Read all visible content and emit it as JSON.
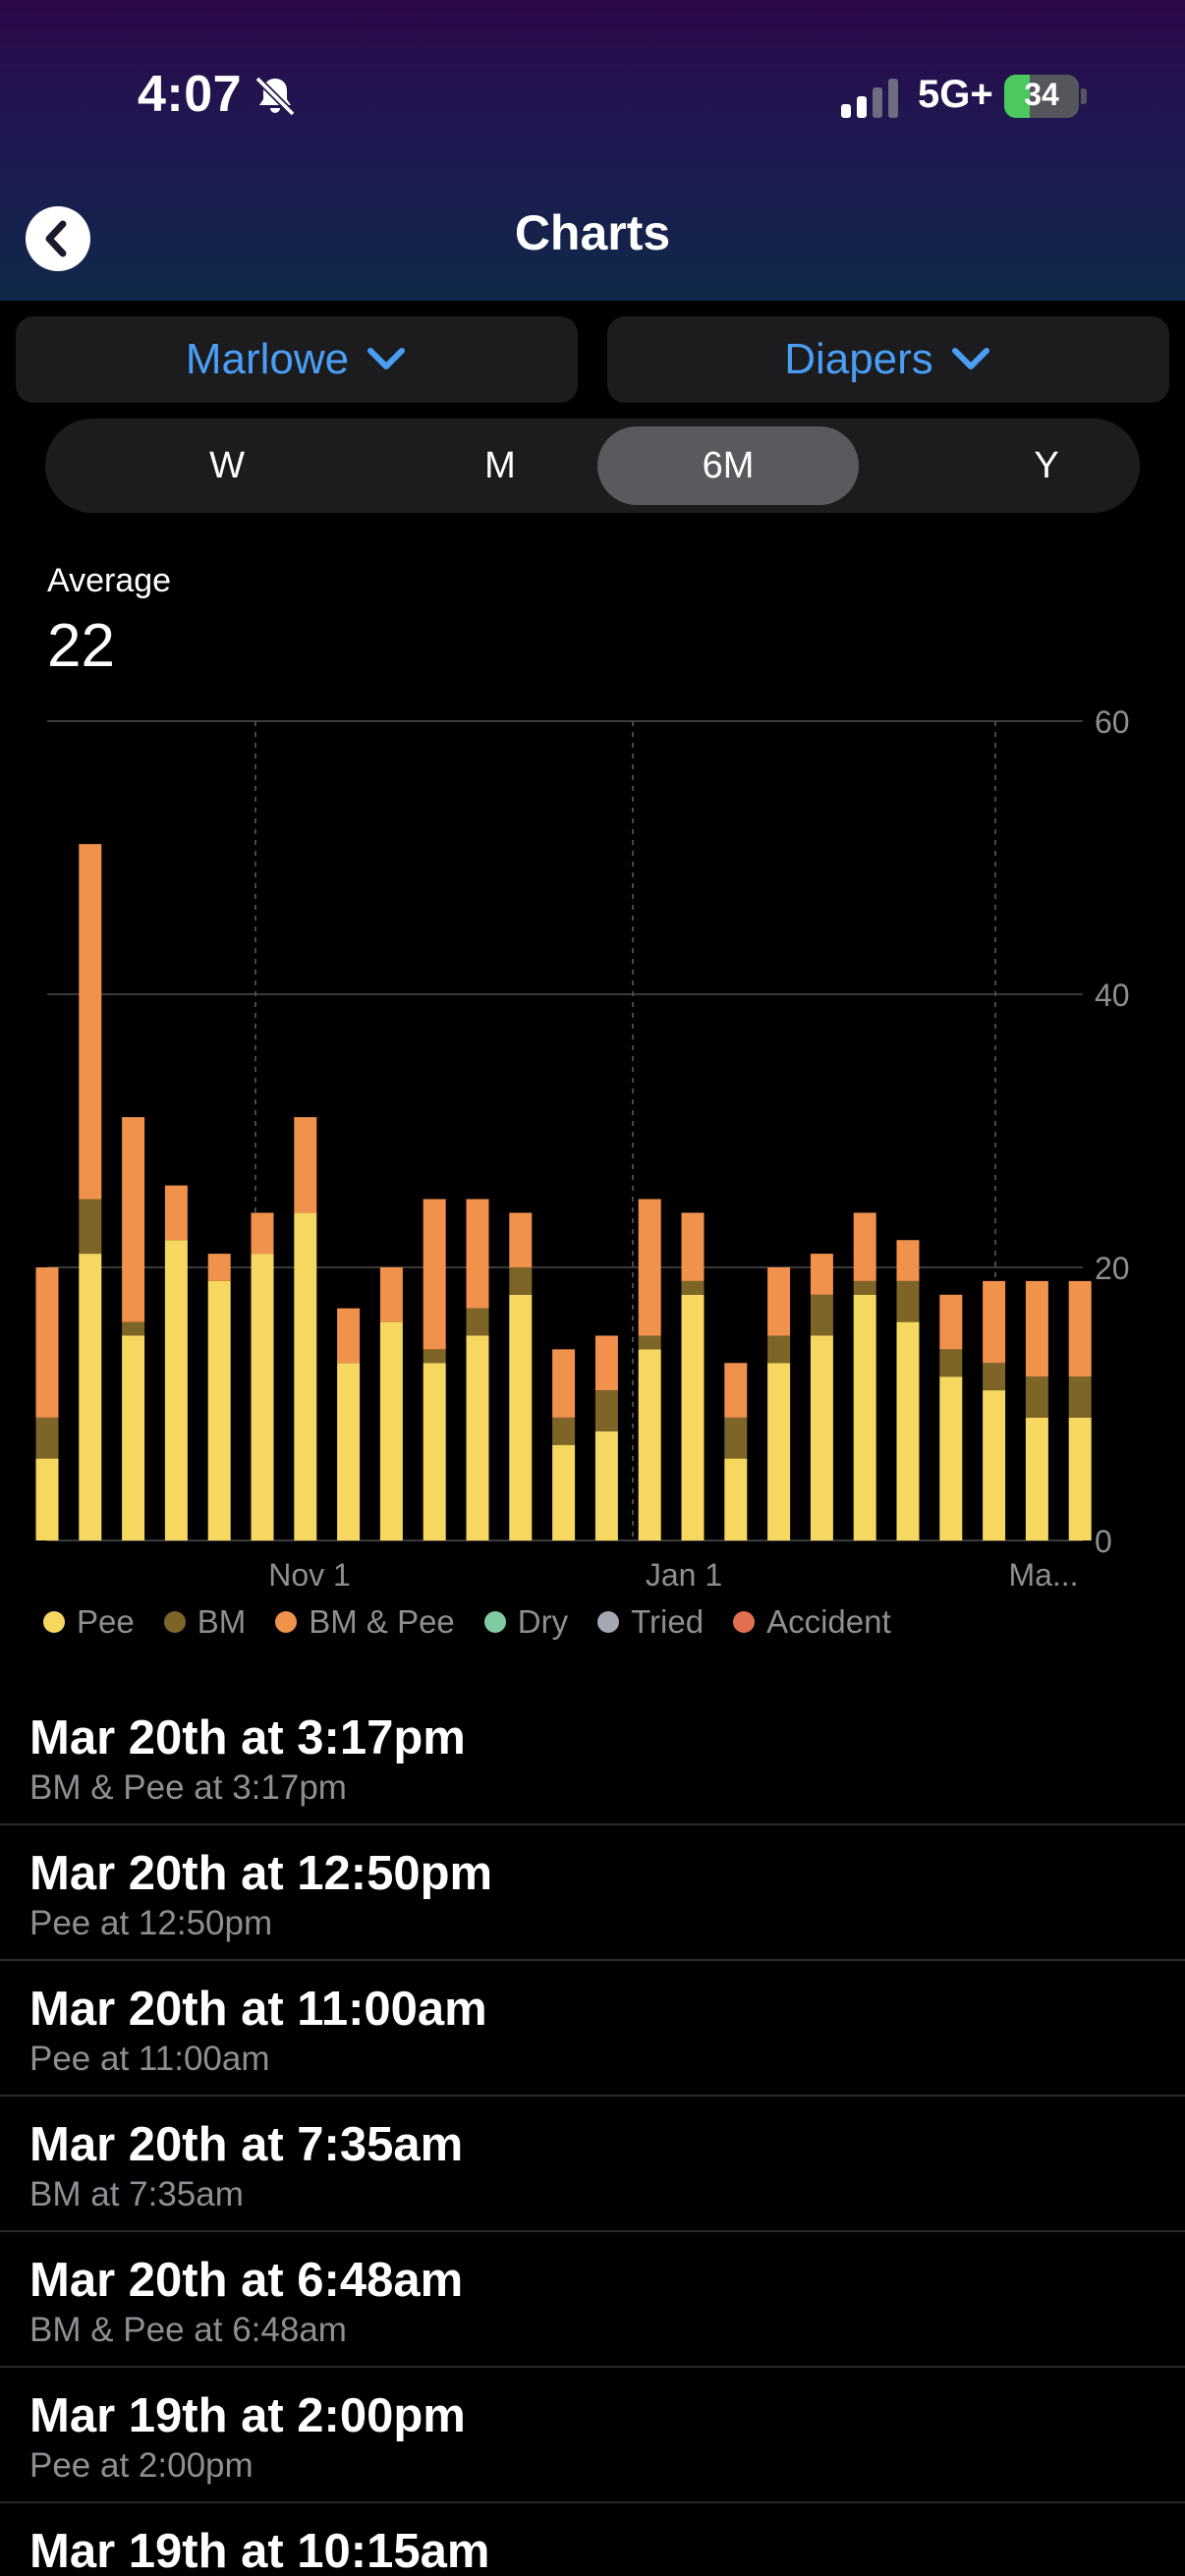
{
  "status": {
    "time": "4:07",
    "network": "5G+",
    "battery": "34",
    "battery_level": 0.34
  },
  "nav": {
    "title": "Charts"
  },
  "pickers": {
    "child": "Marlowe",
    "category": "Diapers"
  },
  "ranges": [
    "W",
    "M",
    "6M",
    "Y"
  ],
  "selected_range": "6M",
  "average": {
    "label": "Average",
    "value": "22"
  },
  "colors": {
    "pee": "#f6d860",
    "bm": "#7d6528",
    "bm_pee": "#f0914c",
    "dry": "#7ecba1",
    "tried": "#a5a8b3",
    "accident": "#e0704f",
    "accent": "#4a9ef5"
  },
  "chart_data": {
    "type": "bar",
    "stacked": true,
    "ylim": [
      0,
      60
    ],
    "y_ticks": [
      "0",
      "20",
      "40",
      "60"
    ],
    "x_tick_labels": [
      "Nov 1",
      "Jan 1",
      "Ma..."
    ],
    "legend": [
      "Pee",
      "BM",
      "BM & Pee",
      "Dry",
      "Tried",
      "Accident"
    ],
    "series": [
      {
        "name": "Pee",
        "values": [
          6,
          21,
          15,
          22,
          19,
          21,
          24,
          13,
          16,
          13,
          15,
          18,
          7,
          8,
          14,
          18,
          6,
          13,
          15,
          18,
          16,
          12,
          11,
          9,
          9
        ]
      },
      {
        "name": "BM",
        "values": [
          3,
          4,
          1,
          0,
          0,
          0,
          0,
          0,
          0,
          1,
          2,
          2,
          2,
          3,
          1,
          1,
          3,
          2,
          3,
          1,
          3,
          2,
          2,
          3,
          3
        ]
      },
      {
        "name": "BM & Pee",
        "values": [
          11,
          26,
          15,
          4,
          2,
          3,
          7,
          4,
          4,
          11,
          8,
          4,
          5,
          4,
          10,
          5,
          4,
          5,
          3,
          5,
          3,
          4,
          6,
          7,
          7
        ]
      }
    ]
  },
  "entries": [
    {
      "title": "Mar 20th at 3:17pm",
      "sub": "BM & Pee at 3:17pm"
    },
    {
      "title": "Mar 20th at 12:50pm",
      "sub": "Pee at 12:50pm"
    },
    {
      "title": "Mar 20th at 11:00am",
      "sub": "Pee at 11:00am"
    },
    {
      "title": "Mar 20th at 7:35am",
      "sub": "BM at 7:35am"
    },
    {
      "title": "Mar 20th at 6:48am",
      "sub": "BM & Pee at 6:48am"
    },
    {
      "title": "Mar 19th at 2:00pm",
      "sub": "Pee at 2:00pm"
    },
    {
      "title": "Mar 19th at 10:15am",
      "sub": ""
    }
  ]
}
